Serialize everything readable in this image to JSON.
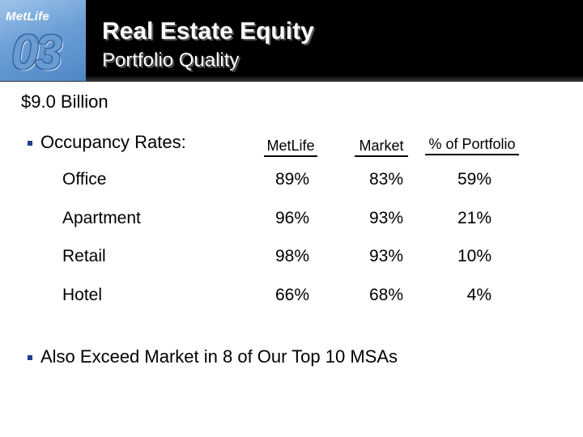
{
  "header": {
    "logo_brand": "MetLife",
    "logo_number": "03",
    "title": "Real Estate Equity",
    "subtitle": "Portfolio Quality"
  },
  "amount": "$9.0 Billion",
  "occupancy": {
    "heading": "Occupancy Rates:",
    "columns": [
      "MetLife",
      "Market",
      "% of Portfolio"
    ],
    "rows": [
      {
        "label": "Office",
        "metlife": "89%",
        "market": "83%",
        "portfolio": "59%"
      },
      {
        "label": "Apartment",
        "metlife": "96%",
        "market": "93%",
        "portfolio": "21%"
      },
      {
        "label": "Retail",
        "metlife": "98%",
        "market": "93%",
        "portfolio": "10%"
      },
      {
        "label": "Hotel",
        "metlife": "66%",
        "market": "68%",
        "portfolio": "4%"
      }
    ]
  },
  "bullet2": "Also Exceed Market in 8 of Our Top 10 MSAs",
  "colors": {
    "bullet": "#1f3c8f",
    "logo": "#6d9fd6",
    "header_bg": "#000000"
  }
}
